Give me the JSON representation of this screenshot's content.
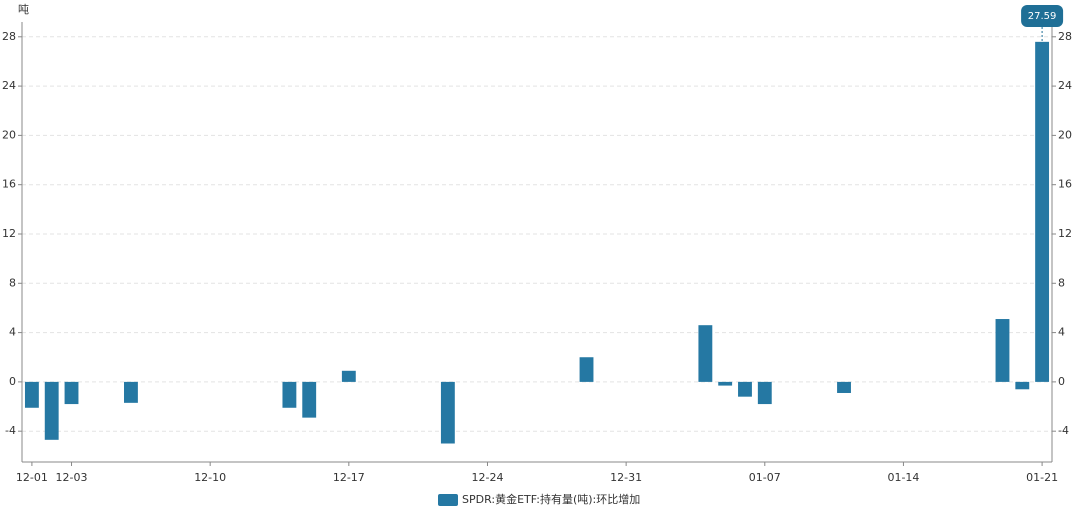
{
  "chart_data": {
    "type": "bar",
    "y_unit": "吨",
    "categories": [
      "12-01",
      null,
      "12-03",
      null,
      null,
      null,
      null,
      null,
      null,
      "12-10",
      null,
      null,
      null,
      null,
      null,
      null,
      "12-17",
      null,
      null,
      null,
      null,
      null,
      null,
      "12-24",
      null,
      null,
      null,
      null,
      null,
      null,
      "12-31",
      null,
      null,
      null,
      null,
      null,
      null,
      "01-07",
      null,
      null,
      null,
      null,
      null,
      null,
      "01-14",
      null,
      null,
      null,
      null,
      null,
      null,
      "01-21"
    ],
    "series": [
      {
        "name": "SPDR:黄金ETF:持有量(吨):环比增加",
        "color": "#2578a3",
        "values": [
          -2.1,
          -4.7,
          -1.8,
          null,
          null,
          -1.7,
          null,
          null,
          null,
          null,
          null,
          null,
          null,
          -2.1,
          -2.9,
          null,
          0.9,
          null,
          null,
          null,
          null,
          -5.0,
          null,
          null,
          null,
          null,
          null,
          null,
          2.0,
          null,
          null,
          null,
          null,
          null,
          4.6,
          -0.3,
          -1.2,
          -1.8,
          null,
          null,
          null,
          -0.9,
          null,
          null,
          null,
          null,
          null,
          null,
          null,
          5.1,
          -0.6,
          27.59
        ]
      }
    ],
    "ylim": [
      -6.5,
      29.2
    ],
    "yticks": [
      -4,
      0,
      4,
      8,
      12,
      16,
      20,
      24,
      28
    ],
    "grid": true
  }
}
